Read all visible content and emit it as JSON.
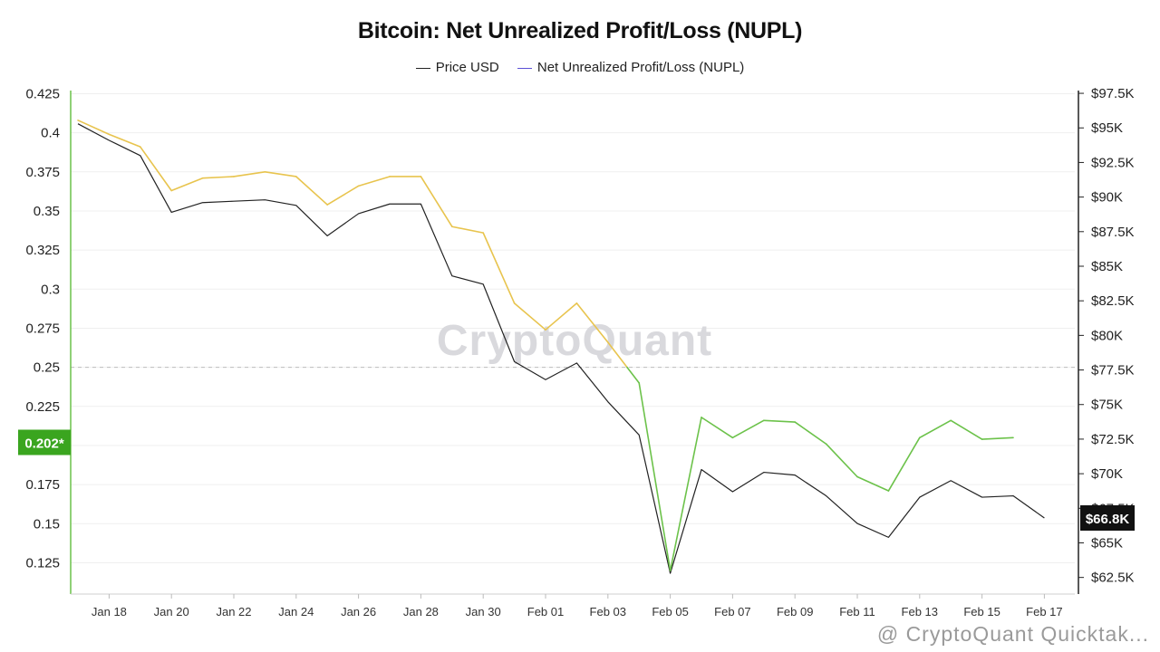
{
  "chart_data": {
    "type": "line",
    "title": "Bitcoin: Net Unrealized Profit/Loss (NUPL)",
    "legend": [
      {
        "name": "Price USD",
        "color": "#222222"
      },
      {
        "name": "Net Unrealized Profit/Loss (NUPL)",
        "color": "#5b4fd6"
      }
    ],
    "legend_position": "top-center",
    "x_ticks": [
      "Jan 18",
      "Jan 20",
      "Jan 22",
      "Jan 24",
      "Jan 26",
      "Jan 28",
      "Jan 30",
      "Feb 01",
      "Feb 03",
      "Feb 05",
      "Feb 07",
      "Feb 09",
      "Feb 11",
      "Feb 13",
      "Feb 15",
      "Feb 17"
    ],
    "y_left_ticks": [
      "0.425",
      "0.4",
      "0.375",
      "0.35",
      "0.325",
      "0.3",
      "0.275",
      "0.25",
      "0.225",
      "0.2",
      "0.175",
      "0.15",
      "0.125"
    ],
    "y_left_range": [
      0.105,
      0.427
    ],
    "y_right_ticks": [
      "$97.5K",
      "$95K",
      "$92.5K",
      "$90K",
      "$87.5K",
      "$85K",
      "$82.5K",
      "$80K",
      "$77.5K",
      "$75K",
      "$72.5K",
      "$70K",
      "$67.5K",
      "$65K",
      "$62.5K"
    ],
    "y_right_range": [
      61300,
      97700
    ],
    "reference_line": 0.25,
    "grid": true,
    "nupl_color_high": "#e8c44e",
    "nupl_color_low": "#6cc24a",
    "nupl_threshold": 0.25,
    "series": [
      {
        "name": "Net Unrealized Profit/Loss (NUPL)",
        "axis": "left",
        "x": [
          "Jan 17",
          "Jan 18",
          "Jan 19",
          "Jan 20",
          "Jan 21",
          "Jan 22",
          "Jan 23",
          "Jan 24",
          "Jan 25",
          "Jan 26",
          "Jan 27",
          "Jan 28",
          "Jan 29",
          "Jan 30",
          "Jan 31",
          "Feb 01",
          "Feb 02",
          "Feb 03",
          "Feb 04",
          "Feb 05",
          "Feb 06",
          "Feb 07",
          "Feb 08",
          "Feb 09",
          "Feb 10",
          "Feb 11",
          "Feb 12",
          "Feb 13",
          "Feb 14",
          "Feb 15",
          "Feb 16"
        ],
        "values": [
          0.408,
          0.399,
          0.391,
          0.363,
          0.371,
          0.372,
          0.375,
          0.372,
          0.354,
          0.366,
          0.372,
          0.372,
          0.34,
          0.336,
          0.291,
          0.274,
          0.291,
          0.266,
          0.24,
          0.12,
          0.218,
          0.205,
          0.216,
          0.215,
          0.201,
          0.18,
          0.171,
          0.205,
          0.216,
          0.204,
          0.205
        ]
      },
      {
        "name": "Price USD",
        "axis": "right",
        "x": [
          "Jan 17",
          "Jan 18",
          "Jan 19",
          "Jan 20",
          "Jan 21",
          "Jan 22",
          "Jan 23",
          "Jan 24",
          "Jan 25",
          "Jan 26",
          "Jan 27",
          "Jan 28",
          "Jan 29",
          "Jan 30",
          "Jan 31",
          "Feb 01",
          "Feb 02",
          "Feb 03",
          "Feb 04",
          "Feb 05",
          "Feb 06",
          "Feb 07",
          "Feb 08",
          "Feb 09",
          "Feb 10",
          "Feb 11",
          "Feb 12",
          "Feb 13",
          "Feb 14",
          "Feb 15",
          "Feb 16",
          "Feb 17"
        ],
        "values": [
          95300,
          94100,
          93000,
          88900,
          89600,
          89700,
          89800,
          89400,
          87200,
          88800,
          89500,
          89500,
          84300,
          83700,
          78100,
          76800,
          78000,
          75200,
          72800,
          62800,
          70300,
          68700,
          70100,
          69900,
          68400,
          66400,
          65400,
          68300,
          69500,
          68300,
          68400,
          66800
        ]
      }
    ],
    "current_labels": {
      "nupl": "0.202*",
      "price": "$66.8K"
    },
    "watermark": "CryptoQuant",
    "footer_watermark": "@ CryptoQuant Quicktak..."
  }
}
